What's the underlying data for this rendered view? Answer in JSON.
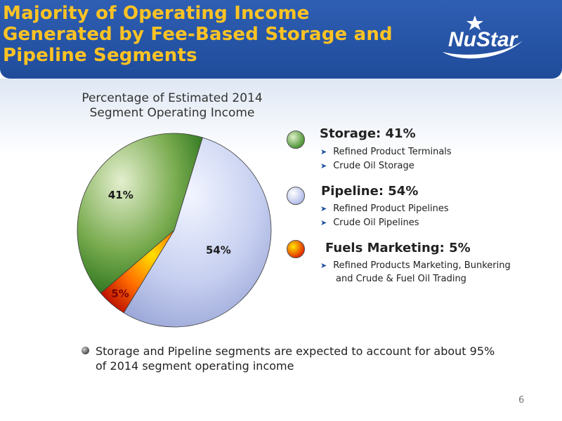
{
  "header": {
    "title_lines": [
      "Majority of Operating Income",
      "Generated by Fee-Based Storage and",
      "Pipeline Segments"
    ],
    "logo_text": "NuStar"
  },
  "chart_data": {
    "type": "pie",
    "title_lines": [
      "Percentage of Estimated 2014",
      "Segment Operating Income"
    ],
    "categories": [
      "Storage",
      "Pipeline",
      "Fuels Marketing"
    ],
    "values": [
      41,
      54,
      5
    ],
    "data_labels": [
      "41%",
      "54%",
      "5%"
    ]
  },
  "legend": [
    {
      "heading": "Storage: 41%",
      "items": [
        "Refined Product Terminals",
        "Crude Oil Storage"
      ],
      "color": "#5e9a3c"
    },
    {
      "heading": "Pipeline: 54%",
      "items": [
        "Refined Product Pipelines",
        "Crude Oil Pipelines"
      ],
      "color": "#c9d3f2"
    },
    {
      "heading": "Fuels Marketing: 5%",
      "items": [
        "Refined Products Marketing, Bunkering",
        "and Crude & Fuel Oil Trading"
      ],
      "color": "#ff8a00"
    }
  ],
  "bullet": {
    "lines": [
      "Storage and Pipeline segments are expected to account for about 95%",
      "of 2014 segment operating income"
    ]
  },
  "page_number": "6"
}
